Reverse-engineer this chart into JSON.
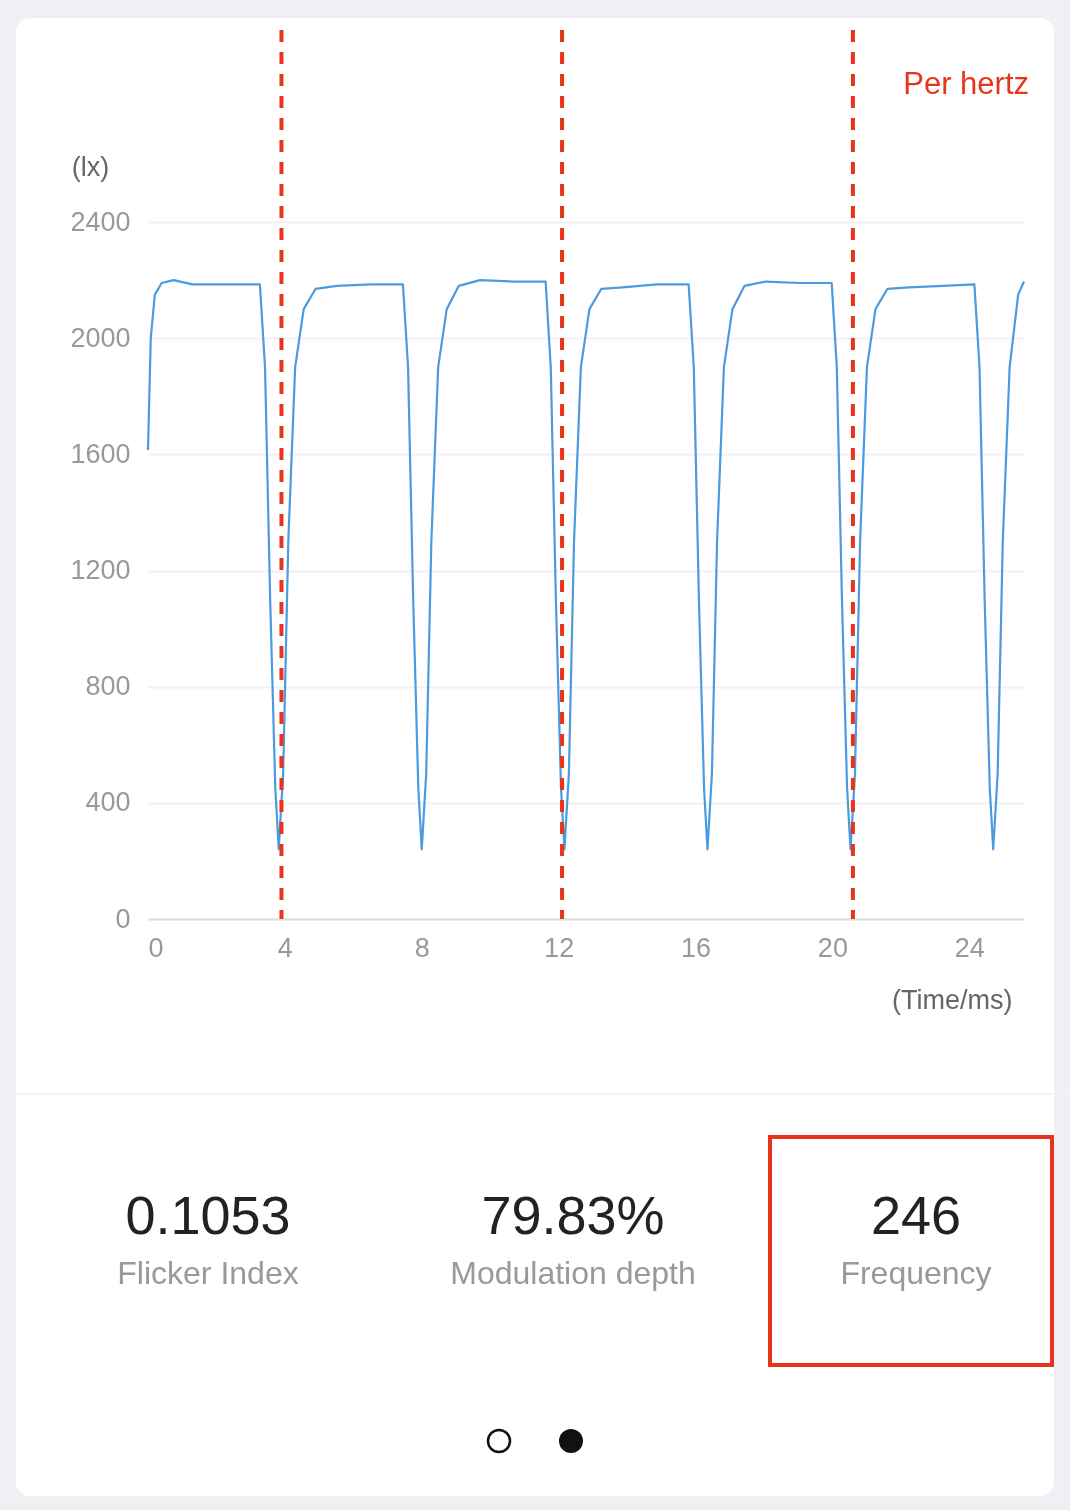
{
  "chart_data": [
    {
      "type": "line",
      "ylabel": "(lx)",
      "xlabel": "(Time/ms)",
      "annotations": [
        "Per hertz"
      ],
      "xlim": [
        0,
        25.6
      ],
      "xticks": [
        0,
        4,
        8,
        12,
        16,
        20,
        24
      ],
      "ylim": [
        0,
        2400
      ],
      "yticks": [
        0,
        400,
        800,
        1200,
        1600,
        2000,
        2400
      ],
      "grid": "y",
      "series": [
        {
          "color": "#4a9be0",
          "x": [
            0,
            0.08,
            0.2,
            0.4,
            0.75,
            1.3,
            2.3,
            3.27,
            3.42,
            3.57,
            3.72,
            3.82,
            3.95,
            4.1,
            4.3,
            4.55,
            4.9,
            5.52,
            6.52,
            7.45,
            7.6,
            7.75,
            7.9,
            8.0,
            8.13,
            8.28,
            8.48,
            8.73,
            9.08,
            9.7,
            10.7,
            11.62,
            11.77,
            11.92,
            12.07,
            12.17,
            12.3,
            12.45,
            12.65,
            12.9,
            13.25,
            13.87,
            14.87,
            15.8,
            15.95,
            16.1,
            16.25,
            16.35,
            16.48,
            16.63,
            16.83,
            17.08,
            17.43,
            18.05,
            19.05,
            19.98,
            20.13,
            20.28,
            20.43,
            20.53,
            20.66,
            20.81,
            21.01,
            21.26,
            21.61,
            22.23,
            23.23,
            24.15,
            24.3,
            24.45,
            24.6,
            24.7,
            24.83,
            24.98,
            25.18,
            25.43,
            25.6
          ],
          "values": [
            1615,
            2000,
            2150,
            2190,
            2200,
            2185,
            2185,
            2185,
            1900,
            1100,
            450,
            240,
            500,
            1300,
            1900,
            2100,
            2170,
            2180,
            2185,
            2185,
            1900,
            1100,
            450,
            240,
            500,
            1300,
            1900,
            2100,
            2180,
            2200,
            2195,
            2195,
            1900,
            1100,
            450,
            240,
            500,
            1300,
            1900,
            2100,
            2170,
            2175,
            2185,
            2185,
            1900,
            1100,
            450,
            240,
            500,
            1300,
            1900,
            2100,
            2180,
            2195,
            2190,
            2190,
            1900,
            1100,
            450,
            240,
            500,
            1300,
            1900,
            2100,
            2170,
            2175,
            2180,
            2185,
            1900,
            1100,
            450,
            240,
            500,
            1300,
            1900,
            2150,
            2195
          ]
        }
      ],
      "ref_lines": [
        {
          "axis": "x",
          "value": 3.9,
          "color": "#e8341c",
          "line_style": "dashed"
        },
        {
          "axis": "x",
          "value": 12.1,
          "color": "#e8341c",
          "line_style": "dashed"
        },
        {
          "axis": "x",
          "value": 20.6,
          "color": "#e8341c",
          "line_style": "dashed"
        }
      ]
    },
    {
      "type": "other",
      "annotations": [
        "0.1053",
        "Flicker Index",
        "79.83%",
        "Modulation depth",
        "246",
        "Frequency"
      ]
    }
  ]
}
